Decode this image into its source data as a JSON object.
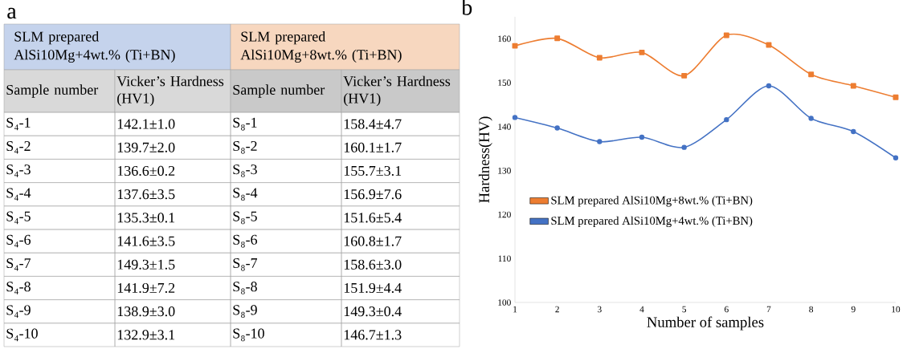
{
  "chart_data": [
    {
      "type": "other",
      "title": "a",
      "annotations": [
        "SLM prepared AlSi10Mg+4wt.% (Ti+BN)",
        "SLM prepared AlSi10Mg+8wt.% (Ti+BN)",
        "Sample number",
        "Vicker’s Hardness (HV1)",
        "Sample number",
        "Vicker’s Hardness (HV1)",
        "S₄-1",
        "142.1±1.0",
        "S₈-1",
        "158.4±4.7",
        "S₄-2",
        "139.7±2.0",
        "S₈-2",
        "160.1±1.7",
        "S₄-3",
        "136.6±0.2",
        "S₈-3",
        "155.7±3.1",
        "S₄-4",
        "137.6±3.5",
        "S₈-4",
        "156.9±7.6",
        "S₄-5",
        "135.3±0.1",
        "S₈-5",
        "151.6±5.4",
        "S₄-6",
        "141.6±3.5",
        "S₈-6",
        "160.8±1.7",
        "S₄-7",
        "149.3±1.5",
        "S₈-7",
        "158.6±3.0",
        "S₄-8",
        "141.9±7.2",
        "S₈-8",
        "151.9±4.4",
        "S₄-9",
        "138.9±3.0",
        "S₈-9",
        "149.3±0.4",
        "S₄-10",
        "132.9±3.1",
        "S₈-10",
        "146.7±1.3"
      ]
    },
    {
      "type": "line",
      "title": "b",
      "xlabel": "Number of samples",
      "ylabel": "Hardness(HV)",
      "x": [
        1,
        2,
        3,
        4,
        5,
        6,
        7,
        8,
        9,
        10
      ],
      "xlim": [
        1,
        10
      ],
      "xticks": [
        1,
        2,
        3,
        4,
        5,
        6,
        7,
        8,
        9,
        10
      ],
      "ylim": [
        100,
        165
      ],
      "yticks": [
        100,
        110,
        120,
        130,
        140,
        150,
        160
      ],
      "legend": "left",
      "grid": false,
      "series": [
        {
          "name": "SLM prepared AlSi10Mg+8wt.% (Ti+BN)",
          "color": "#ed7d31",
          "marker": "square",
          "values": [
            158.4,
            160.1,
            155.7,
            156.9,
            151.6,
            160.8,
            158.6,
            151.9,
            149.3,
            146.7
          ]
        },
        {
          "name": "SLM prepared AlSi10Mg+4wt.% (Ti+BN)",
          "color": "#4472c4",
          "marker": "circle",
          "values": [
            142.1,
            139.7,
            136.6,
            137.6,
            135.3,
            141.6,
            149.3,
            141.9,
            138.9,
            132.9
          ]
        }
      ]
    }
  ]
}
